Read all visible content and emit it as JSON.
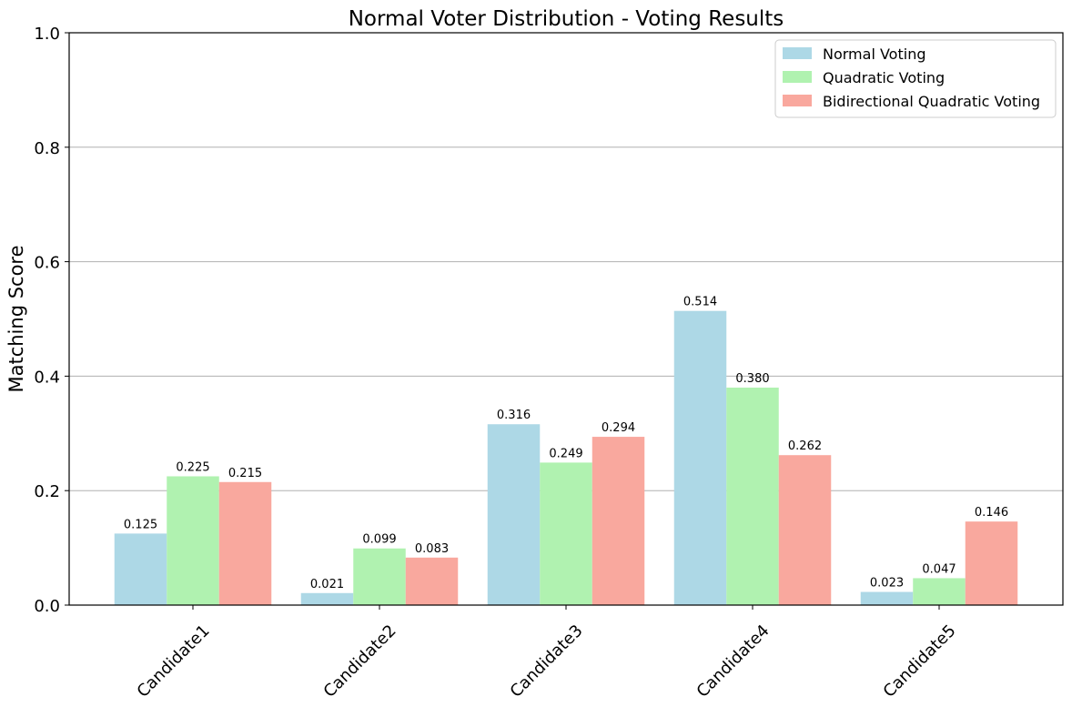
{
  "chart_data": {
    "type": "bar",
    "title": "Normal Voter Distribution - Voting Results",
    "xlabel": "",
    "ylabel": "Matching Score",
    "categories": [
      "Candidate1",
      "Candidate2",
      "Candidate3",
      "Candidate4",
      "Candidate5"
    ],
    "ylim": [
      0,
      1.0
    ],
    "yticks": [
      "0.0",
      "0.2",
      "0.4",
      "0.6",
      "0.8",
      "1.0"
    ],
    "grid": "y-major",
    "legend_position": "top-right",
    "series": [
      {
        "name": "Normal Voting",
        "color": "#add8e6",
        "values": [
          0.125,
          0.021,
          0.316,
          0.514,
          0.023
        ],
        "labels": [
          "0.125",
          "0.021",
          "0.316",
          "0.514",
          "0.023"
        ]
      },
      {
        "name": "Quadratic Voting",
        "color": "#b0f2b0",
        "values": [
          0.225,
          0.099,
          0.249,
          0.38,
          0.047
        ],
        "labels": [
          "0.225",
          "0.099",
          "0.249",
          "0.380",
          "0.047"
        ]
      },
      {
        "name": "Bidirectional Quadratic Voting",
        "color": "#f9a89e",
        "values": [
          0.215,
          0.083,
          0.294,
          0.262,
          0.146
        ],
        "labels": [
          "0.215",
          "0.083",
          "0.294",
          "0.262",
          "0.146"
        ]
      }
    ]
  }
}
